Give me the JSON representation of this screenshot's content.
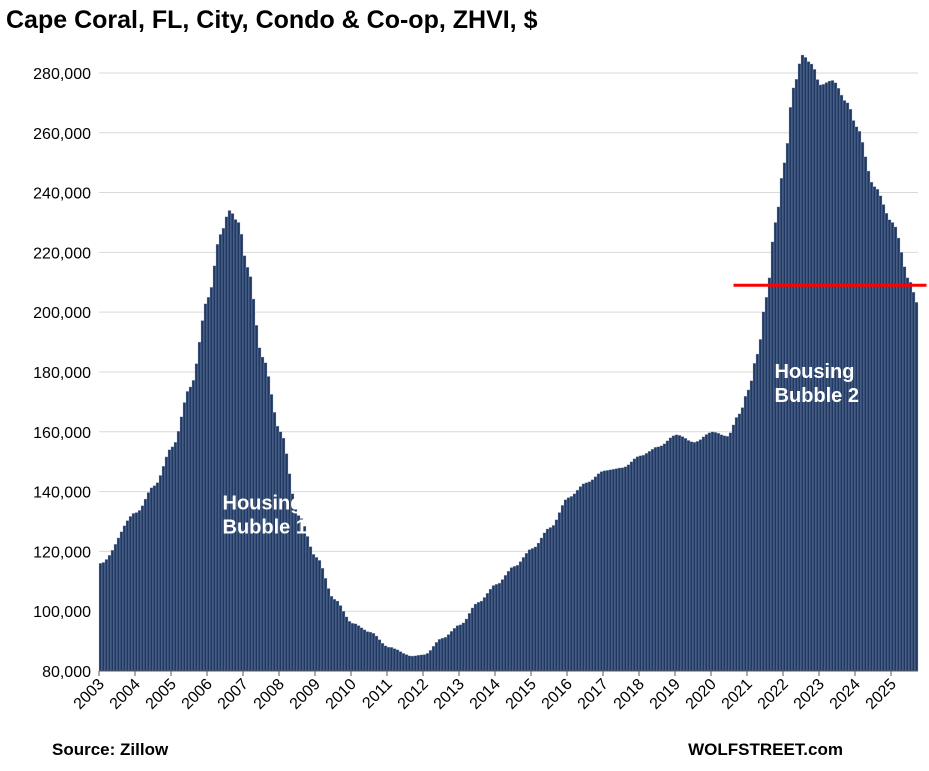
{
  "title": "Cape Coral, FL, City, Condo & Co-op, ZHVI, $",
  "source": "Source: Zillow",
  "brand": "WOLFSTREET.com",
  "colors": {
    "bar": "#1f3864",
    "bar_edge": "#a8b4c8",
    "grid": "#d9d9d9",
    "ref_line": "#ff0000",
    "annotation_text": "#ffffff"
  },
  "chart_data": {
    "type": "bar",
    "title": "Cape Coral, FL, City, Condo & Co-op, ZHVI, $",
    "frequency": "monthly",
    "xlabel": "",
    "ylabel": "",
    "ylim": [
      80000,
      285000
    ],
    "yticks": [
      "80,000",
      "100,000",
      "120,000",
      "140,000",
      "160,000",
      "180,000",
      "200,000",
      "220,000",
      "240,000",
      "260,000",
      "280,000"
    ],
    "ytick_values": [
      80000,
      100000,
      120000,
      140000,
      160000,
      180000,
      200000,
      220000,
      240000,
      260000,
      280000
    ],
    "xticks": [
      "2003",
      "2004",
      "2005",
      "2006",
      "2007",
      "2008",
      "2009",
      "2010",
      "2011",
      "2012",
      "2013",
      "2014",
      "2015",
      "2016",
      "2017",
      "2018",
      "2019",
      "2020",
      "2021",
      "2022",
      "2023",
      "2024",
      "2025"
    ],
    "grid": true,
    "legend": "none",
    "anchors": [
      [
        "2003-01",
        116000
      ],
      [
        "2004-01",
        133000
      ],
      [
        "2004-07",
        142000
      ],
      [
        "2005-01",
        155000
      ],
      [
        "2005-07",
        175000
      ],
      [
        "2006-01",
        205000
      ],
      [
        "2006-05",
        226000
      ],
      [
        "2006-08",
        234000
      ],
      [
        "2006-11",
        230000
      ],
      [
        "2007-02",
        215000
      ],
      [
        "2007-07",
        185000
      ],
      [
        "2008-01",
        160000
      ],
      [
        "2008-07",
        132000
      ],
      [
        "2009-01",
        118000
      ],
      [
        "2009-07",
        104000
      ],
      [
        "2010-01",
        96000
      ],
      [
        "2010-07",
        93000
      ],
      [
        "2011-01",
        88000
      ],
      [
        "2011-09",
        85000
      ],
      [
        "2012-01",
        85500
      ],
      [
        "2012-07",
        91000
      ],
      [
        "2013-01",
        95500
      ],
      [
        "2013-07",
        103000
      ],
      [
        "2014-01",
        109000
      ],
      [
        "2014-07",
        115000
      ],
      [
        "2015-01",
        121000
      ],
      [
        "2015-07",
        128000
      ],
      [
        "2016-01",
        138000
      ],
      [
        "2016-07",
        143000
      ],
      [
        "2017-01",
        147000
      ],
      [
        "2017-07",
        148000
      ],
      [
        "2018-01",
        152000
      ],
      [
        "2018-07",
        155000
      ],
      [
        "2019-01",
        159000
      ],
      [
        "2019-07",
        156500
      ],
      [
        "2020-01",
        160000
      ],
      [
        "2020-06",
        158500
      ],
      [
        "2020-10",
        166000
      ],
      [
        "2021-01",
        174000
      ],
      [
        "2021-04",
        186000
      ],
      [
        "2021-07",
        205000
      ],
      [
        "2021-10",
        230000
      ],
      [
        "2022-01",
        250000
      ],
      [
        "2022-04",
        275000
      ],
      [
        "2022-07",
        286000
      ],
      [
        "2022-10",
        283000
      ],
      [
        "2023-01",
        276000
      ],
      [
        "2023-05",
        277500
      ],
      [
        "2023-10",
        270000
      ],
      [
        "2024-01",
        262000
      ],
      [
        "2024-07",
        242000
      ],
      [
        "2025-01",
        230000
      ],
      [
        "2025-07",
        210000
      ]
    ],
    "reference_line": {
      "value": 209000,
      "from": "2020-08",
      "to": "2025-09"
    },
    "annotations": [
      {
        "text_lines": [
          "Housing",
          "Bubble 1"
        ],
        "x": "2007-07",
        "y": 134000
      },
      {
        "text_lines": [
          "Housing",
          "Bubble 2"
        ],
        "x": "2022-11",
        "y": 178000
      }
    ]
  }
}
